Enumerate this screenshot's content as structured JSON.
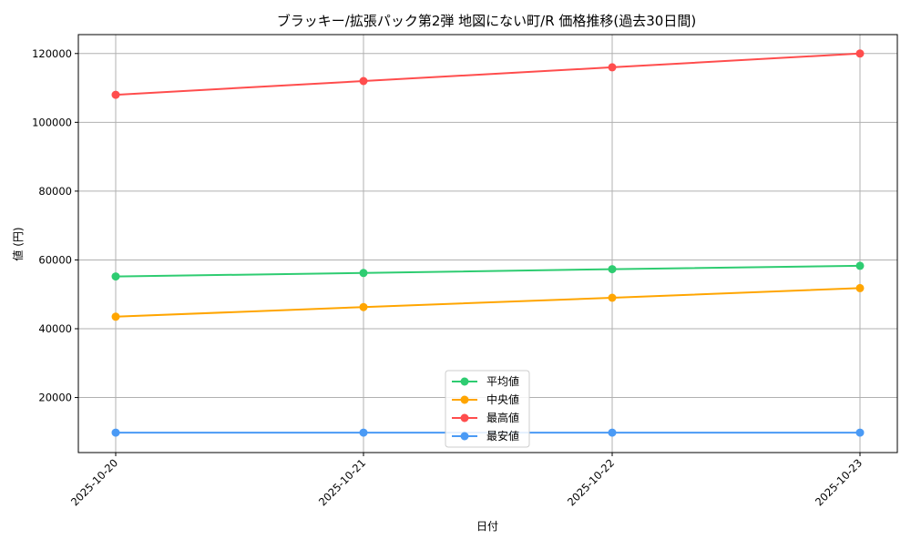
{
  "chart_data": {
    "type": "line",
    "title": "ブラッキー/拡張パック第2弾 地図にない町/R 価格推移(過去30日間)",
    "xlabel": "日付",
    "ylabel": "値 (円)",
    "categories": [
      "2025-10-20",
      "2025-10-21",
      "2025-10-22",
      "2025-10-23"
    ],
    "ylim": [
      4000,
      125500
    ],
    "yticks": [
      20000,
      40000,
      60000,
      80000,
      100000,
      120000
    ],
    "grid": true,
    "legend_position": "lower-center",
    "series": [
      {
        "name": "平均値",
        "color": "#2ecc71",
        "values": [
          55200,
          56200,
          57300,
          58300
        ]
      },
      {
        "name": "中央値",
        "color": "#ffa500",
        "values": [
          43500,
          46300,
          49000,
          51800
        ]
      },
      {
        "name": "最高値",
        "color": "#ff4d4d",
        "values": [
          108000,
          112000,
          116000,
          120000
        ]
      },
      {
        "name": "最安値",
        "color": "#4a9af5",
        "values": [
          9800,
          9800,
          9800,
          9800
        ]
      }
    ]
  }
}
